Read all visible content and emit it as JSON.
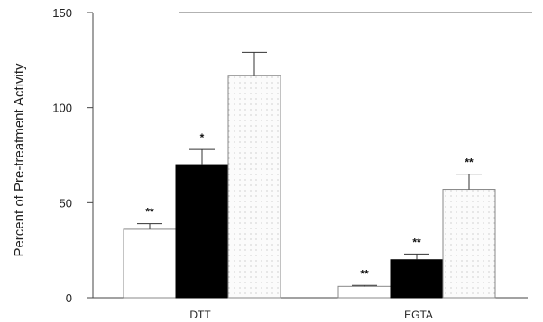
{
  "chart_data": {
    "type": "bar",
    "ylabel": "Percent of Pre-treatment Activity",
    "ylim": [
      0,
      150
    ],
    "yticks": [
      "0",
      "50",
      "100",
      "150"
    ],
    "categories": [
      "DTT",
      "EGTA"
    ],
    "series": [
      {
        "values": [
          36,
          6
        ],
        "errors": [
          3,
          0.5
        ],
        "significance": [
          "**",
          "**"
        ],
        "fill": "#ffffff"
      },
      {
        "values": [
          70,
          20
        ],
        "errors": [
          8,
          3
        ],
        "significance": [
          "*",
          "**"
        ],
        "fill": "#000000"
      },
      {
        "values": [
          117,
          57
        ],
        "errors": [
          12,
          8
        ],
        "significance": [
          "",
          "**"
        ],
        "fill": "#f6f6f6"
      }
    ],
    "grid": false,
    "legend": "none"
  }
}
